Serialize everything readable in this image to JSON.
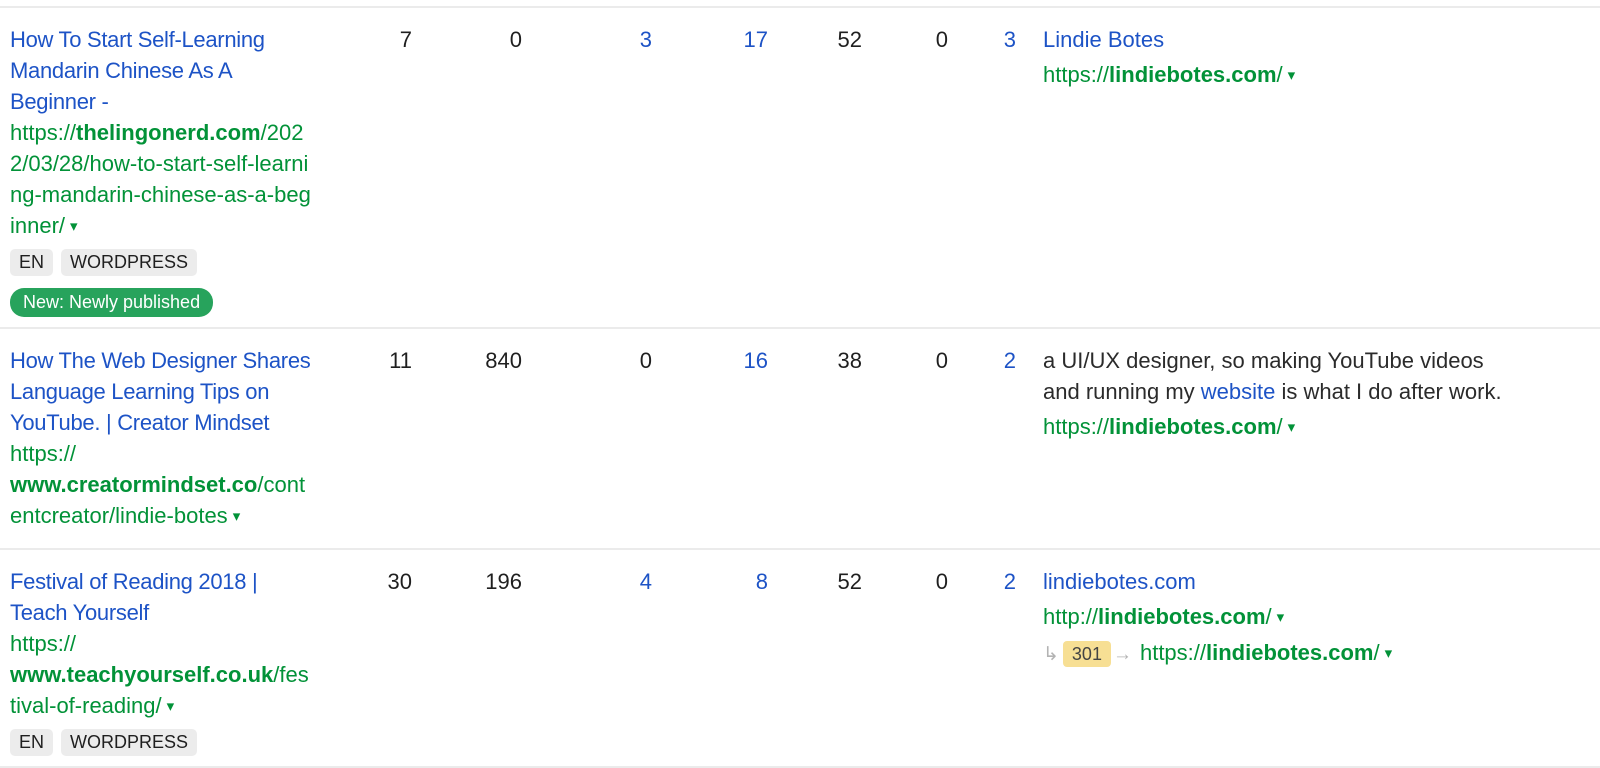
{
  "colors": {
    "link_blue": "#1d53c6",
    "url_green": "#029238",
    "text_dark": "#1f1f1f",
    "tag_bg": "#ececec",
    "new_badge_bg": "#27a35c",
    "redirect_badge_bg": "#f7df94",
    "divider": "#ebebeb"
  },
  "icons": {
    "dropdown_caret": "▾",
    "redirect_down_arrow": "↳",
    "redirect_right_arrow": "→"
  },
  "rows": [
    {
      "title": "How To Start Self-Learning Mandarin Chinese As A Beginner -",
      "url": {
        "protocol": "https://",
        "domain": "thelingonerd.com",
        "path": "/2022/03/28/how-to-start-self-learning-mandarin-chinese-as-a-beginner/"
      },
      "tags": [
        "EN",
        "WORDPRESS"
      ],
      "new_badge": "New: Newly published",
      "metrics": [
        {
          "value": "7",
          "is_link": false
        },
        {
          "value": "0",
          "is_link": false
        },
        {
          "value": "3",
          "is_link": true
        },
        {
          "value": "17",
          "is_link": true
        },
        {
          "value": "52",
          "is_link": false
        },
        {
          "value": "0",
          "is_link": false
        },
        {
          "value": "3",
          "is_link": true
        }
      ],
      "anchor": {
        "before": "",
        "link": "Lindie Botes",
        "after": ""
      },
      "target": {
        "protocol": "https://",
        "domain": "lindiebotes.com",
        "path": "/"
      }
    },
    {
      "title": "How The Web Designer Shares Language Learning Tips on YouTube. | Creator Mindset",
      "url": {
        "protocol": "https://",
        "domain": "www.creatormindset.co",
        "path": "/contentcreator/lindie-botes"
      },
      "tags": [],
      "metrics": [
        {
          "value": "11",
          "is_link": false
        },
        {
          "value": "840",
          "is_link": false
        },
        {
          "value": "0",
          "is_link": false
        },
        {
          "value": "16",
          "is_link": true
        },
        {
          "value": "38",
          "is_link": false
        },
        {
          "value": "0",
          "is_link": false
        },
        {
          "value": "2",
          "is_link": true
        }
      ],
      "anchor": {
        "before": "a UI/UX designer, so making YouTube videos and running my ",
        "link": "website",
        "after": " is what I do after work."
      },
      "target": {
        "protocol": "https://",
        "domain": "lindiebotes.com",
        "path": "/"
      }
    },
    {
      "title": "Festival of Reading 2018 | Teach Yourself",
      "url": {
        "protocol": "https://",
        "domain": "www.teachyourself.co.uk",
        "path": "/festival-of-reading/"
      },
      "tags": [
        "EN",
        "WORDPRESS"
      ],
      "metrics": [
        {
          "value": "30",
          "is_link": false
        },
        {
          "value": "196",
          "is_link": false
        },
        {
          "value": "4",
          "is_link": true
        },
        {
          "value": "8",
          "is_link": true
        },
        {
          "value": "52",
          "is_link": false
        },
        {
          "value": "0",
          "is_link": false
        },
        {
          "value": "2",
          "is_link": true
        }
      ],
      "anchor": {
        "before": "",
        "link": "lindiebotes.com",
        "after": ""
      },
      "target": {
        "protocol": "http://",
        "domain": "lindiebotes.com",
        "path": "/"
      },
      "redirect": {
        "status": "301",
        "url": {
          "protocol": "https://",
          "domain": "lindiebotes.com",
          "path": "/"
        }
      }
    }
  ]
}
